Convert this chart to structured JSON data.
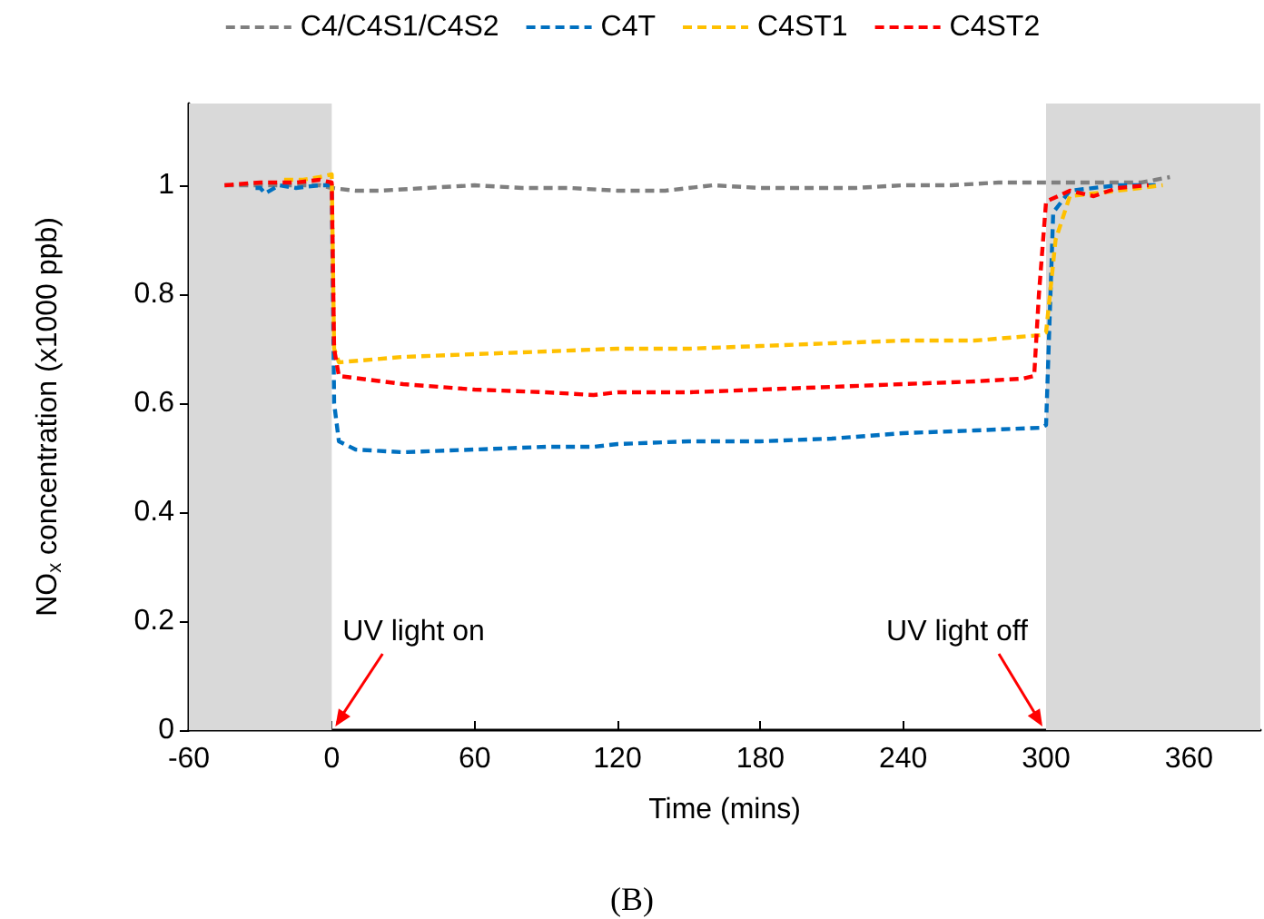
{
  "chart_data": {
    "type": "line",
    "xlabel": "Time (mins)",
    "ylabel": "NO$_{x}$ concentration (x1000 ppb)",
    "xlim": [
      -60,
      390
    ],
    "xticks": [
      -60,
      0,
      60,
      120,
      180,
      240,
      300,
      360
    ],
    "ylim": [
      0,
      1.15
    ],
    "yticks": [
      0,
      0.2,
      0.4,
      0.6,
      0.8,
      1
    ],
    "grid": false,
    "legend": "top",
    "line_style": "dashed",
    "marker": "none",
    "bands": [
      {
        "axis": "x",
        "from": -60,
        "to": 0,
        "color": "#d9d9d9"
      },
      {
        "axis": "x",
        "from": 300,
        "to": 390,
        "color": "#d9d9d9"
      }
    ],
    "annotations": [
      {
        "text": "UV light on",
        "x": 0,
        "y": 0
      },
      {
        "text": "UV light off",
        "x": 300,
        "y": 0
      },
      "(B)"
    ],
    "series": [
      {
        "name": "C4/C4S1/C4S2",
        "color": "#7f7f7f",
        "x": [
          -45,
          -35,
          -25,
          -15,
          -5,
          0,
          10,
          20,
          40,
          60,
          80,
          100,
          120,
          140,
          160,
          180,
          200,
          220,
          240,
          260,
          280,
          300,
          320,
          340,
          352
        ],
        "values": [
          1.0,
          1.0,
          1.0,
          1.0,
          1.0,
          0.995,
          0.99,
          0.99,
          0.995,
          1.0,
          0.995,
          0.995,
          0.99,
          0.99,
          1.0,
          0.995,
          0.995,
          0.995,
          1.0,
          1.0,
          1.005,
          1.005,
          1.005,
          1.005,
          1.015
        ]
      },
      {
        "name": "C4T",
        "color": "#0070c0",
        "x": [
          -32,
          -30,
          -28,
          -22,
          -15,
          -5,
          0,
          1,
          3,
          10,
          30,
          60,
          90,
          110,
          120,
          150,
          180,
          210,
          240,
          270,
          298,
          300,
          303,
          310,
          330,
          346
        ],
        "values": [
          0.995,
          0.995,
          0.985,
          1.0,
          0.995,
          1.0,
          1.0,
          0.6,
          0.53,
          0.515,
          0.51,
          0.515,
          0.52,
          0.52,
          0.525,
          0.53,
          0.53,
          0.535,
          0.545,
          0.55,
          0.555,
          0.56,
          0.95,
          0.99,
          1.0,
          1.0
        ]
      },
      {
        "name": "C4ST1",
        "color": "#ffc000",
        "x": [
          -20,
          -16,
          -12,
          -5,
          0,
          1,
          3,
          30,
          60,
          90,
          120,
          150,
          180,
          210,
          240,
          270,
          298,
          300,
          304,
          310,
          330,
          349
        ],
        "values": [
          1.01,
          1.01,
          1.01,
          1.015,
          1.02,
          0.7,
          0.675,
          0.685,
          0.69,
          0.695,
          0.7,
          0.7,
          0.705,
          0.71,
          0.715,
          0.715,
          0.725,
          0.73,
          0.9,
          0.98,
          0.99,
          1.0
        ]
      },
      {
        "name": "C4ST2",
        "color": "#ff0000",
        "x": [
          -45,
          -30,
          -15,
          -5,
          0,
          1,
          3,
          30,
          60,
          90,
          110,
          120,
          150,
          180,
          210,
          240,
          270,
          290,
          295,
          297,
          300,
          310,
          320,
          330,
          343
        ],
        "values": [
          1.0,
          1.005,
          1.005,
          1.01,
          1.005,
          0.7,
          0.65,
          0.635,
          0.625,
          0.62,
          0.615,
          0.62,
          0.62,
          0.625,
          0.63,
          0.635,
          0.64,
          0.645,
          0.65,
          0.8,
          0.97,
          0.99,
          0.98,
          0.995,
          1.0
        ]
      }
    ]
  }
}
